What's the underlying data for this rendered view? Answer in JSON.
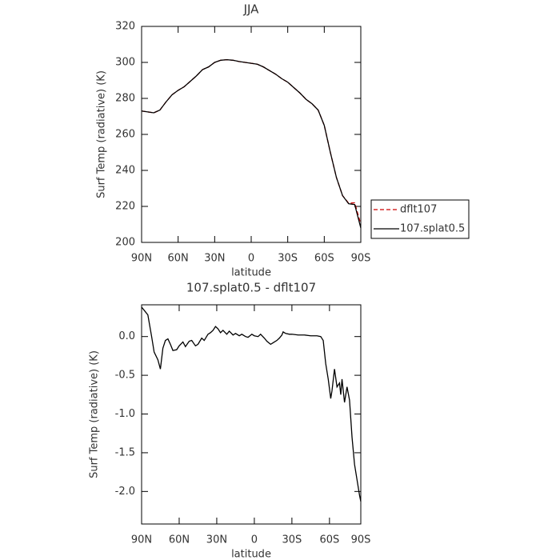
{
  "chart_data": [
    {
      "type": "line",
      "title": "JJA",
      "xlabel": "latitude",
      "ylabel": "Surf Temp (radiative) (K)",
      "x": [
        90,
        85,
        80,
        75,
        70,
        65,
        60,
        55,
        50,
        45,
        40,
        35,
        30,
        25,
        20,
        15,
        10,
        5,
        0,
        -5,
        -10,
        -15,
        -20,
        -25,
        -30,
        -35,
        -40,
        -45,
        -50,
        -55,
        -60,
        -65,
        -70,
        -75,
        -80,
        -85,
        -90
      ],
      "series": [
        {
          "name": "dflt107",
          "color": "#cc0000",
          "dash": true,
          "values": [
            273,
            272.5,
            272,
            273.5,
            278,
            282,
            284.5,
            286.5,
            289.5,
            292.5,
            296,
            297.5,
            300,
            301.2,
            301.5,
            301.2,
            300.5,
            300,
            299.5,
            299,
            297.5,
            295.5,
            293.5,
            291,
            289,
            286,
            283,
            279.5,
            277,
            273.5,
            265,
            250,
            236,
            226,
            221.8,
            222,
            210
          ]
        },
        {
          "name": "107.splat0.5",
          "color": "#000000",
          "dash": false,
          "values": [
            273,
            272.5,
            272,
            273.5,
            278,
            282,
            284.5,
            286.5,
            289.5,
            292.5,
            296,
            297.5,
            300,
            301.2,
            301.5,
            301.2,
            300.5,
            300,
            299.5,
            299,
            297.5,
            295.5,
            293.5,
            291,
            289,
            286,
            283,
            279.5,
            277,
            273.5,
            265,
            250,
            236,
            226,
            221.5,
            221,
            208
          ]
        }
      ],
      "xlim": [
        90,
        -90
      ],
      "xticks": [
        {
          "value": 90,
          "label": "90N"
        },
        {
          "value": 60,
          "label": "60N"
        },
        {
          "value": 30,
          "label": "30N"
        },
        0,
        {
          "value": -30,
          "label": "30S"
        },
        {
          "value": -60,
          "label": "60S"
        },
        {
          "value": -90,
          "label": "90S"
        }
      ],
      "ylim": [
        200,
        320
      ],
      "yticks": [
        200,
        220,
        240,
        260,
        280,
        300,
        320
      ],
      "legend": "right"
    },
    {
      "type": "line",
      "title": "107.splat0.5 - dflt107",
      "xlabel": "latitude",
      "ylabel": "Surf Temp (radiative) (K)",
      "x": [
        90,
        87,
        85,
        82,
        80,
        77,
        75,
        73,
        71,
        69,
        67,
        65,
        62,
        60,
        57,
        55,
        52,
        50,
        47,
        45,
        42,
        40,
        37,
        35,
        33,
        31,
        29,
        27,
        25,
        22,
        20,
        17,
        15,
        12,
        10,
        7,
        5,
        2,
        0,
        -3,
        -5,
        -8,
        -10,
        -13,
        -15,
        -18,
        -20,
        -22,
        -23,
        -25,
        -28,
        -30,
        -35,
        -40,
        -45,
        -50,
        -53,
        -55,
        -57,
        -59,
        -61,
        -62,
        -64,
        -66,
        -68,
        -69,
        -70,
        -72,
        -74,
        -76,
        -78,
        -80,
        -82,
        -84,
        -85
      ],
      "series": [
        {
          "color": "#000000",
          "dash": false,
          "values": [
            0.38,
            0.32,
            0.28,
            0.0,
            -0.2,
            -0.3,
            -0.42,
            -0.15,
            -0.05,
            -0.03,
            -0.1,
            -0.18,
            -0.17,
            -0.12,
            -0.07,
            -0.13,
            -0.06,
            -0.05,
            -0.12,
            -0.1,
            -0.02,
            -0.05,
            0.03,
            0.05,
            0.08,
            0.13,
            0.1,
            0.05,
            0.08,
            0.03,
            0.07,
            0.02,
            0.04,
            0.01,
            0.03,
            0.0,
            -0.01,
            0.03,
            0.01,
            0.0,
            0.03,
            -0.02,
            -0.06,
            -0.1,
            -0.08,
            -0.05,
            -0.02,
            0.02,
            0.06,
            0.04,
            0.03,
            0.03,
            0.02,
            0.02,
            0.01,
            0.01,
            0.0,
            -0.05,
            -0.35,
            -0.55,
            -0.8,
            -0.7,
            -0.42,
            -0.65,
            -0.6,
            -0.75,
            -0.55,
            -0.85,
            -0.65,
            -0.82,
            -1.3,
            -1.65,
            -1.85,
            -2.05,
            -2.13
          ]
        }
      ],
      "xlim": [
        90,
        -85
      ],
      "xticks": [
        {
          "value": 90,
          "label": "90N"
        },
        {
          "value": 60,
          "label": "60N"
        },
        {
          "value": 30,
          "label": "30N"
        },
        0,
        {
          "value": -30,
          "label": "30S"
        },
        {
          "value": -60,
          "label": "60S"
        },
        {
          "value": -85,
          "label": "90S"
        }
      ],
      "ylim": [
        -2.42,
        0.41
      ],
      "yticks": [
        {
          "value": 0,
          "label": "0.0"
        },
        -0.5,
        {
          "value": -1,
          "label": "-1.0"
        },
        -1.5,
        {
          "value": -2,
          "label": "-2.0"
        }
      ]
    }
  ]
}
